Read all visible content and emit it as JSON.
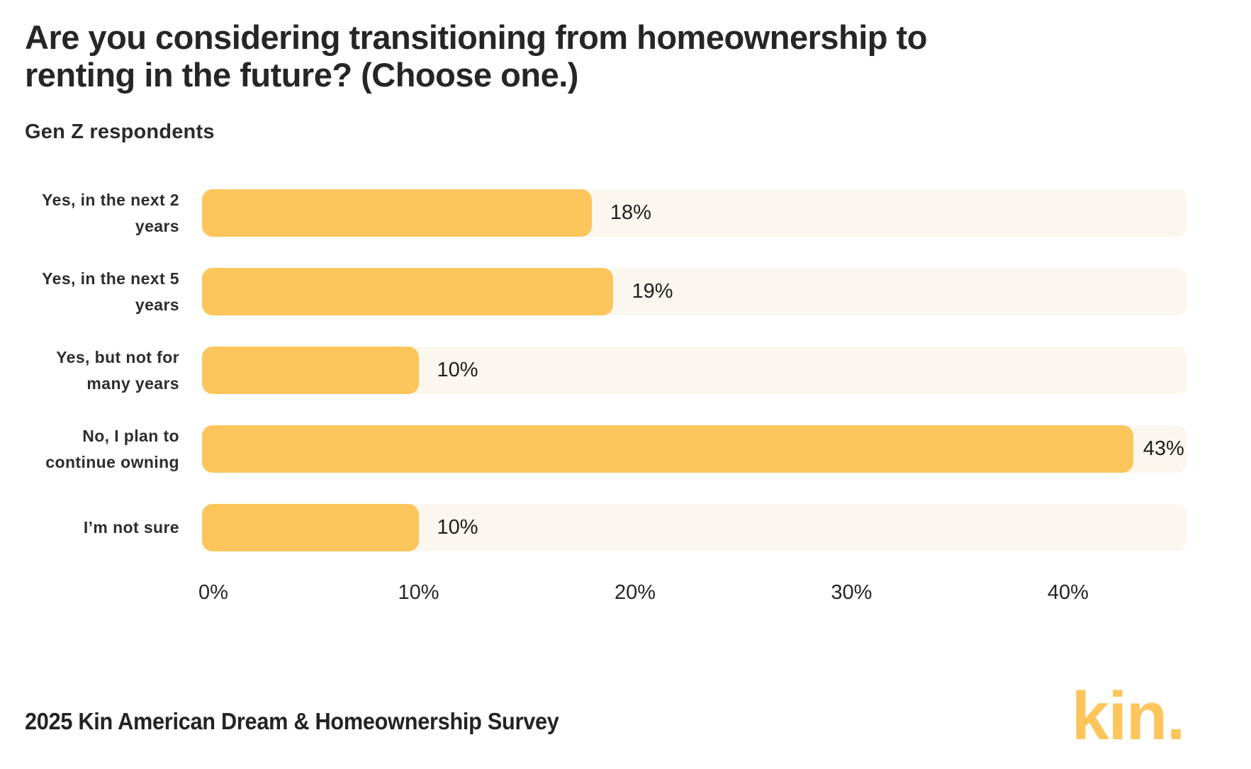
{
  "header": {
    "title_line1": "Are you considering transitioning from homeownership to",
    "title_line2": "renting in the future? (Choose one.)",
    "subtitle": "Gen Z respondents"
  },
  "chart_data": {
    "type": "bar",
    "orientation": "horizontal",
    "title": "Are you considering transitioning from homeownership to renting in the future? (Choose one.)",
    "subtitle": "Gen Z respondents",
    "categories": [
      "Yes, in the next 2 years",
      "Yes, in the next 5 years",
      "Yes, but not for many years",
      "No, I plan to continue owning",
      "I’m not sure"
    ],
    "values": [
      18,
      19,
      10,
      43,
      10
    ],
    "value_labels": [
      "18%",
      "19%",
      "10%",
      "43%",
      "10%"
    ],
    "x_ticks": [
      {
        "value": 0,
        "label": "0%"
      },
      {
        "value": 10,
        "label": "10%"
      },
      {
        "value": 20,
        "label": "20%"
      },
      {
        "value": 30,
        "label": "30%"
      },
      {
        "value": 40,
        "label": "40%"
      }
    ],
    "xlim": [
      0,
      45.5
    ],
    "axis_max": 45.5,
    "bar_color": "#FCC65C",
    "track_color": "#FCF7EE",
    "grid": "off",
    "legend": "none"
  },
  "footer": {
    "source": "2025 Kin American Dream & Homeownership Survey",
    "logo_text": "kin."
  }
}
